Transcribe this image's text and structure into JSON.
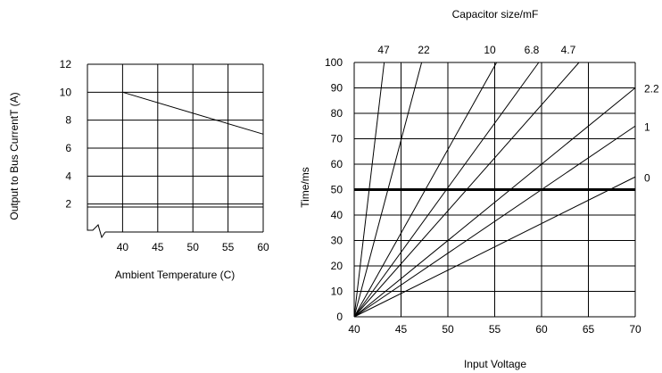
{
  "chart_data": [
    {
      "type": "line",
      "xlabel": "Ambient Temperature (C)",
      "ylabel": "Output to Bus CurrentT (A)",
      "x_ticks": [
        "40",
        "45",
        "50",
        "55",
        "60"
      ],
      "y_ticks": [
        "2",
        "4",
        "6",
        "8",
        "10",
        "12"
      ],
      "xlim": [
        35,
        60
      ],
      "ylim": [
        0,
        12
      ],
      "axis_break": true,
      "grid": true,
      "series": [
        {
          "x": [
            40,
            60
          ],
          "y": [
            10,
            7
          ]
        }
      ]
    },
    {
      "type": "line",
      "title": "Capacitor size/mF",
      "xlabel": "Input Voltage",
      "ylabel": "Time/ms",
      "x_ticks": [
        "40",
        "45",
        "50",
        "55",
        "60",
        "65",
        "70"
      ],
      "y_ticks": [
        "0",
        "10",
        "20",
        "30",
        "40",
        "50",
        "60",
        "70",
        "80",
        "90",
        "100"
      ],
      "xlim": [
        40,
        70
      ],
      "ylim": [
        0,
        100
      ],
      "grid": true,
      "reference_line": {
        "y": 50
      },
      "series": [
        {
          "name": "47",
          "x": [
            40,
            43.2
          ],
          "y": [
            0,
            100
          ]
        },
        {
          "name": "22",
          "x": [
            40,
            47.2
          ],
          "y": [
            0,
            100
          ]
        },
        {
          "name": "10",
          "x": [
            40,
            55.2
          ],
          "y": [
            0,
            100
          ]
        },
        {
          "name": "6.8",
          "x": [
            40,
            59.7
          ],
          "y": [
            0,
            100
          ]
        },
        {
          "name": "4.7",
          "x": [
            40,
            64.0
          ],
          "y": [
            0,
            100
          ]
        },
        {
          "name": "2.2",
          "x": [
            40,
            70
          ],
          "y": [
            0,
            90
          ]
        },
        {
          "name": "1",
          "x": [
            40,
            70
          ],
          "y": [
            0,
            75
          ]
        },
        {
          "name": "0",
          "x": [
            40,
            70
          ],
          "y": [
            0,
            55
          ]
        }
      ]
    }
  ]
}
